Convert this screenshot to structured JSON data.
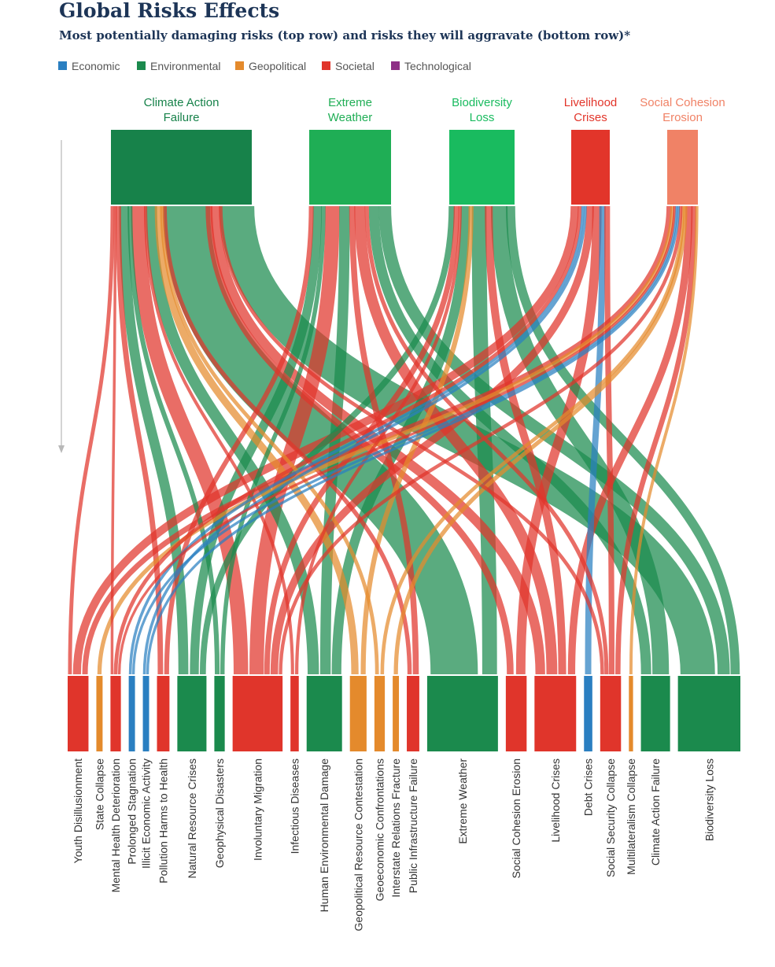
{
  "header": {
    "title": "Global Risks Effects",
    "subtitle": "Most potentially damaging risks (top row) and risks they will aggravate (bottom row)*"
  },
  "colors": {
    "Economic": "#2a7fc1",
    "Environmental": "#1b8a4d",
    "Geopolitical": "#e48a2c",
    "Societal": "#e0352b",
    "Technological": "#8e2f86",
    "sources": {
      "Climate Action Failure": "#17824a",
      "Extreme Weather": "#1fae55",
      "Biodiversity Loss": "#19bb5f",
      "Livelihood Crises": "#e2352a",
      "Social Cohesion Erosion": "#f08266"
    }
  },
  "chart_data": {
    "type": "sankey",
    "title": "Global Risks Effects",
    "subtitle": "Most potentially damaging risks (top row) and risks they will aggravate (bottom row)*",
    "legend": [
      {
        "name": "Economic",
        "category": "Economic"
      },
      {
        "name": "Environmental",
        "category": "Environmental"
      },
      {
        "name": "Geopolitical",
        "category": "Geopolitical"
      },
      {
        "name": "Societal",
        "category": "Societal"
      },
      {
        "name": "Technological",
        "category": "Technological"
      }
    ],
    "legend_position": "top-left",
    "sources": [
      {
        "name": "Climate Action Failure",
        "lines": [
          "Climate Action",
          "Failure"
        ],
        "weight": 9
      },
      {
        "name": "Extreme Weather",
        "lines": [
          "Extreme",
          "Weather"
        ],
        "weight": 5
      },
      {
        "name": "Biodiversity Loss",
        "lines": [
          "Biodiversity",
          "Loss"
        ],
        "weight": 4
      },
      {
        "name": "Livelihood Crises",
        "lines": [
          "Livelihood",
          "Crises"
        ],
        "weight": 2.5
      },
      {
        "name": "Social Cohesion Erosion",
        "lines": [
          "Social Cohesion",
          "Erosion"
        ],
        "weight": 2
      }
    ],
    "targets": [
      {
        "name": "Youth Disillusionment",
        "category": "Societal",
        "weight": 1
      },
      {
        "name": "State Collapse",
        "category": "Geopolitical",
        "weight": 0.3
      },
      {
        "name": "Mental Health Deterioration",
        "category": "Societal",
        "weight": 0.5
      },
      {
        "name": "Prolonged Stagnation",
        "category": "Economic",
        "weight": 0.3
      },
      {
        "name": "Illicit Economic Activity",
        "category": "Economic",
        "weight": 0.3
      },
      {
        "name": "Pollution Harms to Health",
        "category": "Societal",
        "weight": 0.6
      },
      {
        "name": "Natural Resource Crises",
        "category": "Environmental",
        "weight": 1.4
      },
      {
        "name": "Geophysical Disasters",
        "category": "Environmental",
        "weight": 0.5
      },
      {
        "name": "Involuntary Migration",
        "category": "Societal",
        "weight": 2.4
      },
      {
        "name": "Infectious Diseases",
        "category": "Societal",
        "weight": 0.4
      },
      {
        "name": "Human Environmental Damage",
        "category": "Environmental",
        "weight": 1.7
      },
      {
        "name": "Geopolitical Resource Contestation",
        "category": "Geopolitical",
        "weight": 0.8
      },
      {
        "name": "Geoeconomic Confrontations",
        "category": "Geopolitical",
        "weight": 0.5
      },
      {
        "name": "Interstate Relations Fracture",
        "category": "Geopolitical",
        "weight": 0.3
      },
      {
        "name": "Public Infrastructure Failure",
        "category": "Societal",
        "weight": 0.6
      },
      {
        "name": "Extreme Weather",
        "category": "Environmental",
        "weight": 3.4
      },
      {
        "name": "Social Cohesion Erosion",
        "category": "Societal",
        "weight": 1
      },
      {
        "name": "Livelihood Crises",
        "category": "Societal",
        "weight": 2
      },
      {
        "name": "Debt Crises",
        "category": "Economic",
        "weight": 0.4
      },
      {
        "name": "Social Security Collapse",
        "category": "Societal",
        "weight": 1
      },
      {
        "name": "Multilateralism Collapse",
        "category": "Geopolitical",
        "weight": 0.2
      },
      {
        "name": "Climate Action Failure",
        "category": "Environmental",
        "weight": 1.4
      },
      {
        "name": "Biodiversity Loss",
        "category": "Environmental",
        "weight": 3
      }
    ],
    "flows": [
      {
        "from": 0,
        "to": 0,
        "w": 0.2
      },
      {
        "from": 0,
        "to": 2,
        "w": 0.15
      },
      {
        "from": 0,
        "to": 5,
        "w": 0.25
      },
      {
        "from": 0,
        "to": 6,
        "w": 0.5
      },
      {
        "from": 0,
        "to": 7,
        "w": 0.25
      },
      {
        "from": 0,
        "to": 8,
        "w": 0.8
      },
      {
        "from": 0,
        "to": 9,
        "w": 0.15
      },
      {
        "from": 0,
        "to": 10,
        "w": 0.6
      },
      {
        "from": 0,
        "to": 11,
        "w": 0.3
      },
      {
        "from": 0,
        "to": 12,
        "w": 0.15
      },
      {
        "from": 0,
        "to": 14,
        "w": 0.2
      },
      {
        "from": 0,
        "to": 15,
        "w": 2.6
      },
      {
        "from": 0,
        "to": 16,
        "w": 0.3
      },
      {
        "from": 0,
        "to": 17,
        "w": 0.5
      },
      {
        "from": 0,
        "to": 19,
        "w": 0.2
      },
      {
        "from": 0,
        "to": 22,
        "w": 1.9
      },
      {
        "from": 1,
        "to": 5,
        "w": 0.2
      },
      {
        "from": 1,
        "to": 6,
        "w": 0.4
      },
      {
        "from": 1,
        "to": 7,
        "w": 0.2
      },
      {
        "from": 1,
        "to": 8,
        "w": 0.7
      },
      {
        "from": 1,
        "to": 10,
        "w": 0.5
      },
      {
        "from": 1,
        "to": 14,
        "w": 0.25
      },
      {
        "from": 1,
        "to": 17,
        "w": 0.5
      },
      {
        "from": 1,
        "to": 19,
        "w": 0.2
      },
      {
        "from": 1,
        "to": 21,
        "w": 0.5
      },
      {
        "from": 1,
        "to": 22,
        "w": 0.6
      },
      {
        "from": 2,
        "to": 6,
        "w": 0.3
      },
      {
        "from": 2,
        "to": 8,
        "w": 0.3
      },
      {
        "from": 2,
        "to": 9,
        "w": 0.15
      },
      {
        "from": 2,
        "to": 10,
        "w": 0.5
      },
      {
        "from": 2,
        "to": 11,
        "w": 0.2
      },
      {
        "from": 2,
        "to": 15,
        "w": 0.8
      },
      {
        "from": 2,
        "to": 17,
        "w": 0.4
      },
      {
        "from": 2,
        "to": 21,
        "w": 0.9
      },
      {
        "from": 2,
        "to": 22,
        "w": 0.5
      },
      {
        "from": 3,
        "to": 0,
        "w": 0.4
      },
      {
        "from": 3,
        "to": 2,
        "w": 0.2
      },
      {
        "from": 3,
        "to": 3,
        "w": 0.15
      },
      {
        "from": 3,
        "to": 4,
        "w": 0.15
      },
      {
        "from": 3,
        "to": 8,
        "w": 0.4
      },
      {
        "from": 3,
        "to": 16,
        "w": 0.4
      },
      {
        "from": 3,
        "to": 18,
        "w": 0.25
      },
      {
        "from": 3,
        "to": 19,
        "w": 0.3
      },
      {
        "from": 4,
        "to": 0,
        "w": 0.3
      },
      {
        "from": 4,
        "to": 1,
        "w": 0.15
      },
      {
        "from": 4,
        "to": 2,
        "w": 0.15
      },
      {
        "from": 4,
        "to": 3,
        "w": 0.15
      },
      {
        "from": 4,
        "to": 4,
        "w": 0.15
      },
      {
        "from": 4,
        "to": 8,
        "w": 0.2
      },
      {
        "from": 4,
        "to": 12,
        "w": 0.15
      },
      {
        "from": 4,
        "to": 13,
        "w": 0.15
      },
      {
        "from": 4,
        "to": 17,
        "w": 0.4
      },
      {
        "from": 4,
        "to": 19,
        "w": 0.3
      },
      {
        "from": 4,
        "to": 20,
        "w": 0.15
      }
    ]
  }
}
